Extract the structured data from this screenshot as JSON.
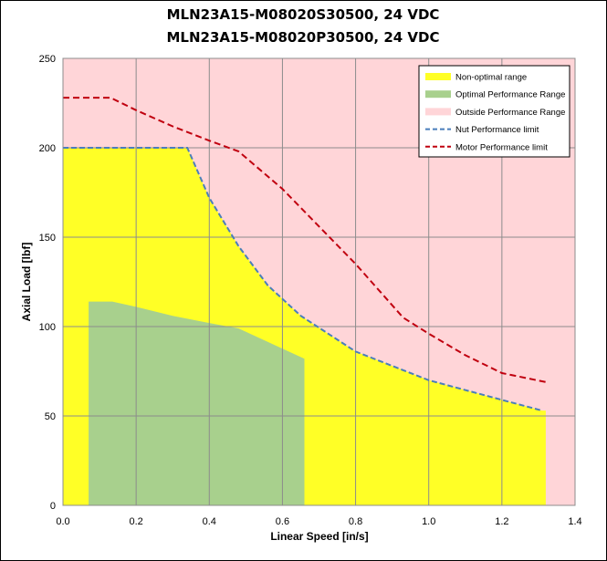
{
  "chart_data": {
    "type": "area",
    "title_lines": [
      "MLN23A15-M08020S30500, 24 VDC",
      "MLN23A15-M08020P30500, 24 VDC"
    ],
    "xlabel": "Linear Speed [in/s]",
    "ylabel": "Axial Load [lbf]",
    "xlim": [
      0,
      1.4
    ],
    "ylim": [
      0,
      250
    ],
    "xticks": [
      "0.0",
      "0.2",
      "0.4",
      "0.6",
      "0.8",
      "1.0",
      "1.2",
      "1.4"
    ],
    "yticks": [
      "0",
      "50",
      "100",
      "150",
      "200",
      "250"
    ],
    "grid": true,
    "legend_position": "top-right",
    "colors": {
      "background": "#ffd5d8",
      "non_optimal": "#ffff26",
      "optimal": "#a8d08d",
      "nut_line": "#4a7ebb",
      "motor_line": "#c0000f",
      "grid": "#8c8c8c"
    },
    "series": [
      {
        "name": "Non-optimal range",
        "kind": "area",
        "color": "#ffff26",
        "x": [
          0,
          0.34,
          0.4,
          0.48,
          0.56,
          0.65,
          0.8,
          1.0,
          1.2,
          1.31,
          1.32
        ],
        "y": [
          200,
          200,
          172,
          145,
          123,
          106,
          86,
          70,
          59,
          53,
          53
        ]
      },
      {
        "name": "Optimal Performance Range",
        "kind": "area",
        "color": "#a8d08d",
        "x": [
          0.07,
          0.135,
          0.2,
          0.3,
          0.4,
          0.48,
          0.66
        ],
        "y": [
          114,
          114,
          111,
          106,
          102,
          99,
          82
        ]
      },
      {
        "name": "Outside Performance Range",
        "kind": "background",
        "color": "#ffd5d8"
      },
      {
        "name": "Nut Performance limit",
        "kind": "dashed-line",
        "color": "#4a7ebb",
        "x": [
          0,
          0.34,
          0.4,
          0.48,
          0.56,
          0.65,
          0.8,
          1.0,
          1.2,
          1.31
        ],
        "y": [
          200,
          200,
          172,
          145,
          123,
          106,
          86,
          70,
          59,
          53
        ]
      },
      {
        "name": "Motor Performance limit",
        "kind": "dashed-line",
        "color": "#c0000f",
        "x": [
          0,
          0.13,
          0.2,
          0.3,
          0.4,
          0.48,
          0.6,
          0.8,
          0.93,
          1.0,
          1.1,
          1.2,
          1.32
        ],
        "y": [
          228,
          228,
          221,
          212,
          204,
          198,
          177,
          135,
          105,
          96,
          84,
          74,
          69
        ]
      }
    ]
  }
}
